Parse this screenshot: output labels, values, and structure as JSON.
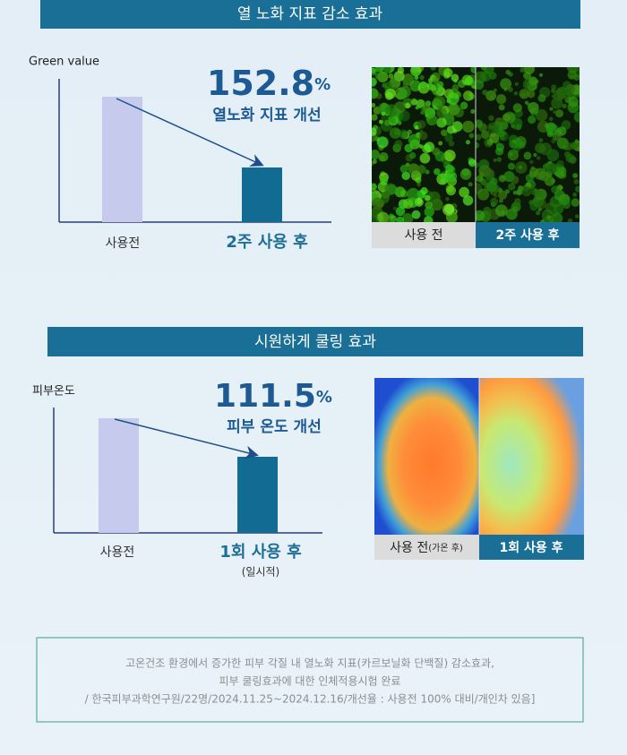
{
  "section1": {
    "title": "열 노화 지표 감소 효과",
    "axis_label": "Green value",
    "result": "152.8",
    "result_unit": "%",
    "result_caption": "열노화 지표 개선",
    "before_label": "사용전",
    "after_label": "2주 사용 후",
    "image_before": "사용 전",
    "image_after": "2주 사용 후"
  },
  "section2": {
    "title": "시원하게 쿨링 효과",
    "axis_label": "피부온도",
    "result": "111.5",
    "result_unit": "%",
    "result_caption": "피부 온도 개선",
    "before_label": "사용전",
    "after_label": "1회 사용 후",
    "after_note": "(일시적)",
    "image_before": "사용 전",
    "image_before_note": "(가온 후)",
    "image_after": "1회 사용 후"
  },
  "footnote": [
    "고온건조 환경에서 증가한 피부 각질 내 열노화 지표(카르보닐화 단백질) 감소효과,",
    "피부 쿨링효과에 대한 인체적용시험 완료",
    "/ 한국피부과학연구원/22명/2024.11.25~2024.12.16/개선율 : 사용전 100% 대비/개인차 있음]"
  ]
}
